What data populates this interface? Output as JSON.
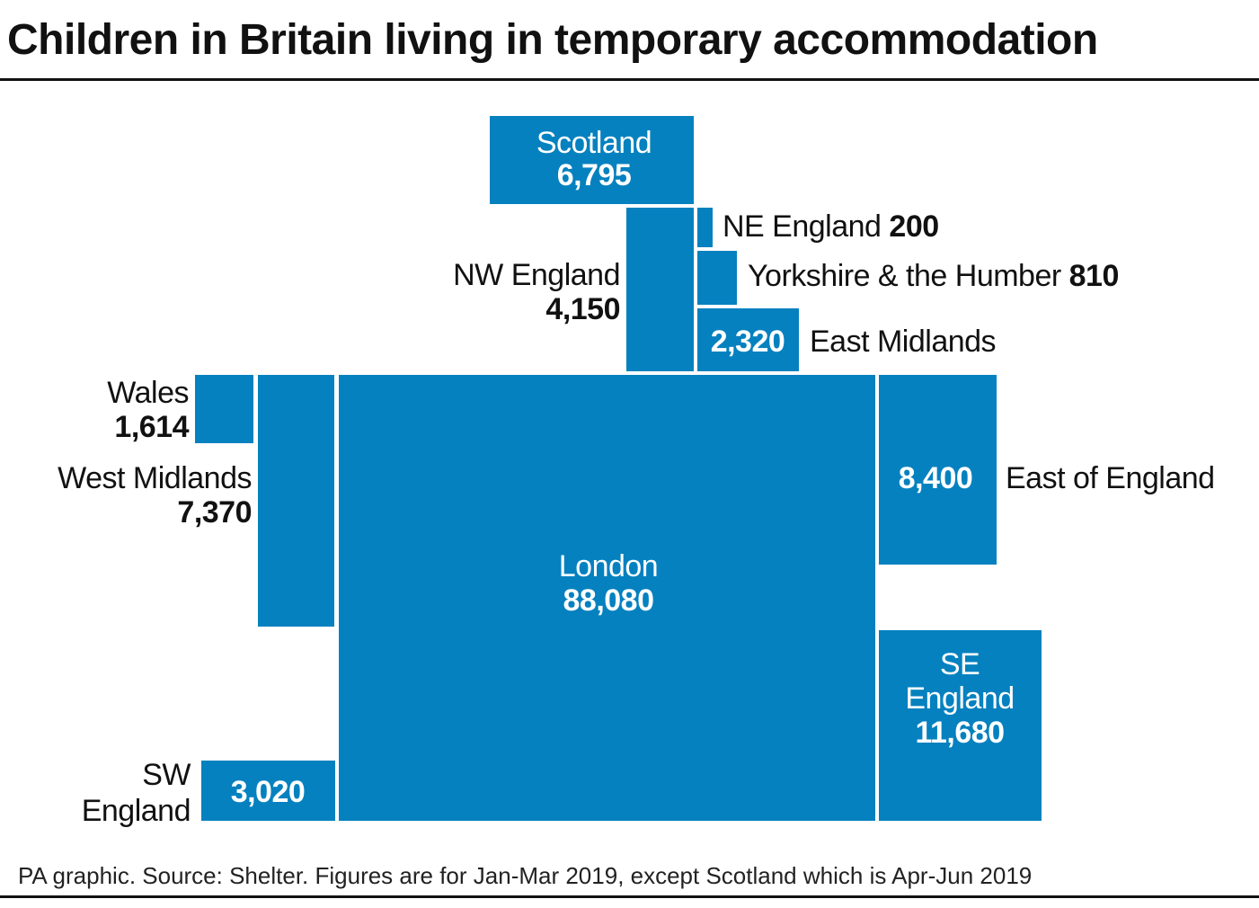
{
  "title": "Children in Britain living in temporary accommodation",
  "footer": "PA graphic. Source: Shelter. Figures are for Jan-Mar 2019, except Scotland which is Apr-Jun 2019",
  "colors": {
    "block": "#0581bf",
    "text_dark": "#111111",
    "text_light": "#ffffff"
  },
  "chart_data": {
    "type": "treemap",
    "regions": [
      {
        "id": "scotland",
        "label_lines": [
          "Scotland"
        ],
        "value": 6795,
        "value_text": "6,795"
      },
      {
        "id": "ne-england",
        "label_lines": [
          "NE England"
        ],
        "value": 200,
        "value_text": "200"
      },
      {
        "id": "yorkshire",
        "label_lines": [
          "Yorkshire & the Humber"
        ],
        "value": 810,
        "value_text": "810"
      },
      {
        "id": "nw-england",
        "label_lines": [
          "NW England"
        ],
        "value": 4150,
        "value_text": "4,150"
      },
      {
        "id": "east-midlands",
        "label_lines": [
          "East Midlands"
        ],
        "value": 2320,
        "value_text": "2,320"
      },
      {
        "id": "wales",
        "label_lines": [
          "Wales"
        ],
        "value": 1614,
        "value_text": "1,614"
      },
      {
        "id": "west-midlands",
        "label_lines": [
          "West Midlands"
        ],
        "value": 7370,
        "value_text": "7,370"
      },
      {
        "id": "london",
        "label_lines": [
          "London"
        ],
        "value": 88080,
        "value_text": "88,080"
      },
      {
        "id": "east-of-england",
        "label_lines": [
          "East of England"
        ],
        "value": 8400,
        "value_text": "8,400"
      },
      {
        "id": "se-england",
        "label_lines": [
          "SE",
          "England"
        ],
        "value": 11680,
        "value_text": "11,680"
      },
      {
        "id": "sw-england",
        "label_lines": [
          "SW",
          "England"
        ],
        "value": 3020,
        "value_text": "3,020"
      }
    ]
  }
}
